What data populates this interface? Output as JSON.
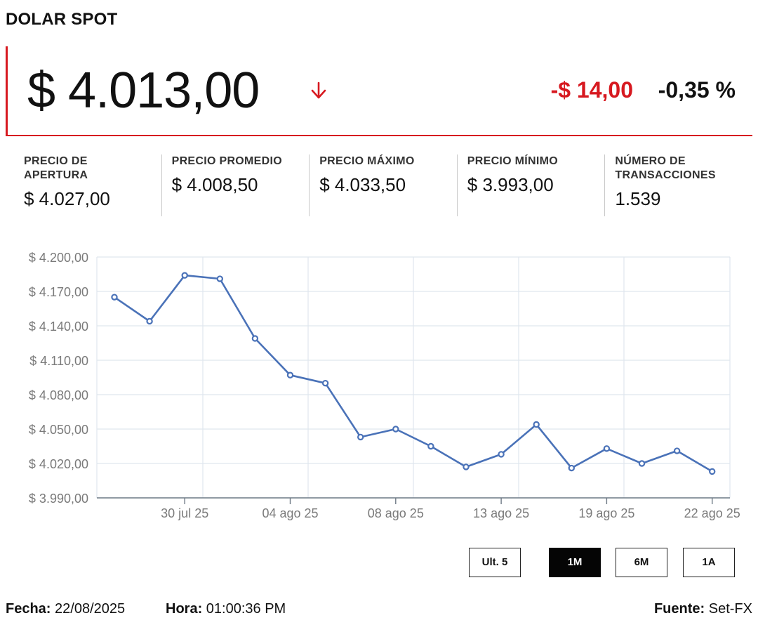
{
  "header": {
    "title": "DOLAR SPOT"
  },
  "price": {
    "current": "$ 4.013,00",
    "direction_icon": "arrow-down-icon",
    "change_abs": "-$ 14,00",
    "change_pct": "-0,35 %",
    "down_color": "#d71920"
  },
  "stats": [
    {
      "label": "PRECIO DE APERTURA",
      "value": "$ 4.027,00"
    },
    {
      "label": "PRECIO PROMEDIO",
      "value": "$ 4.008,50"
    },
    {
      "label": "PRECIO MÁXIMO",
      "value": "$ 4.033,50"
    },
    {
      "label": "PRECIO MÍNIMO",
      "value": "$ 3.993,00"
    },
    {
      "label": "NÚMERO DE TRANSACCIONES",
      "value": "1.539"
    }
  ],
  "chart_data": {
    "type": "line",
    "title": "",
    "xlabel": "",
    "ylabel": "",
    "ylim": [
      3990,
      4200
    ],
    "y_ticks": [
      3990,
      4020,
      4050,
      4080,
      4110,
      4140,
      4170,
      4200
    ],
    "y_tick_labels": [
      "$ 3.990,00",
      "$ 4.020,00",
      "$ 4.050,00",
      "$ 4.080,00",
      "$ 4.110,00",
      "$ 4.140,00",
      "$ 4.170,00",
      "$ 4.200,00"
    ],
    "x_tick_labels": [
      "30 jul 25",
      "04 ago 25",
      "08 ago 25",
      "13 ago 25",
      "19 ago 25",
      "22 ago 25"
    ],
    "x_tick_index": [
      2,
      5,
      8,
      11,
      14,
      17
    ],
    "grid": true,
    "line_color": "#4a72b8",
    "values": [
      4165,
      4144,
      4184,
      4181,
      4129,
      4097,
      4090,
      4043,
      4050,
      4035,
      4017,
      4028,
      4054,
      4016,
      4033,
      4020,
      4031,
      4013
    ]
  },
  "range_buttons": [
    {
      "label": "Ult. 5",
      "active": false
    },
    {
      "label": "1M",
      "active": true
    },
    {
      "label": "6M",
      "active": false
    },
    {
      "label": "1A",
      "active": false
    }
  ],
  "footer": {
    "fecha_label": "Fecha:",
    "fecha_value": "22/08/2025",
    "hora_label": "Hora:",
    "hora_value": "01:00:36 PM",
    "fuente_label": "Fuente:",
    "fuente_value": "Set-FX"
  }
}
